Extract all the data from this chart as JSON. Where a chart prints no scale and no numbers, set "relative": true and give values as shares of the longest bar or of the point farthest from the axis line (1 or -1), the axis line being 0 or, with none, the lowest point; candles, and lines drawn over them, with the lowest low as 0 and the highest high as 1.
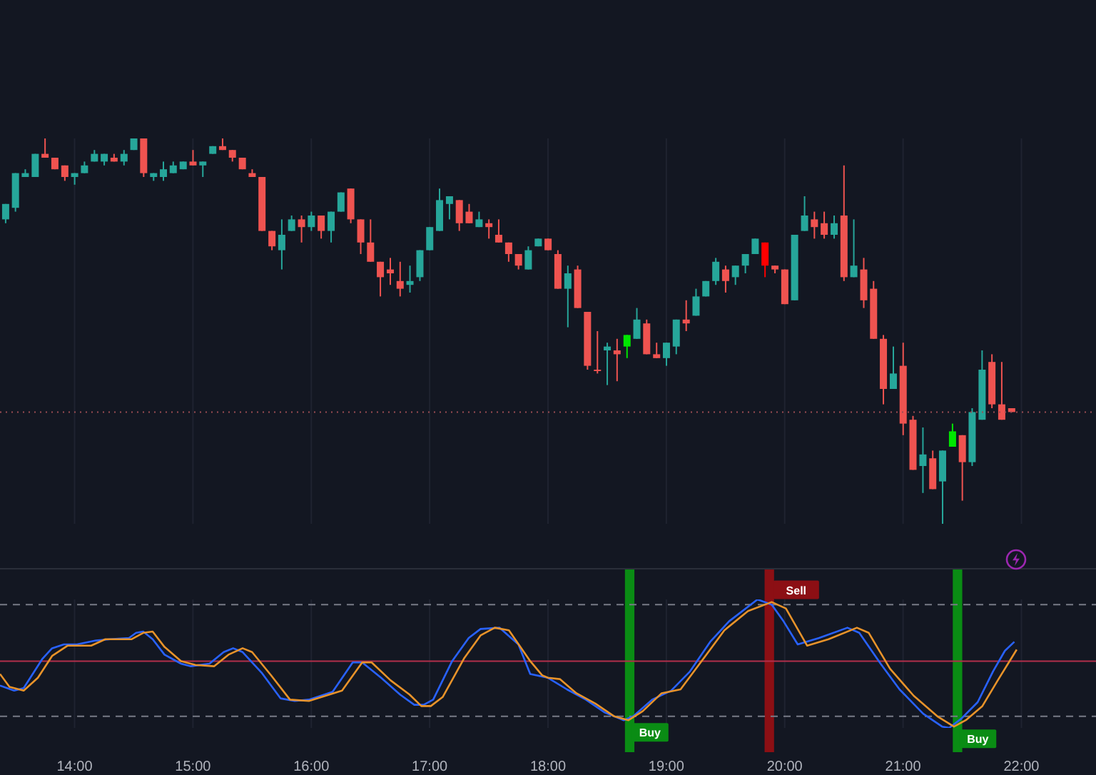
{
  "chart_data": [
    {
      "type": "candlestick",
      "relative": true,
      "grid": "x",
      "tick_labels": false,
      "xlim": [
        13.37,
        22.63
      ],
      "xticks": [
        {
          "value": 14,
          "label": null
        },
        {
          "value": 15,
          "label": null
        },
        {
          "value": 16,
          "label": null
        },
        {
          "value": 17,
          "label": null
        },
        {
          "value": 18,
          "label": null
        },
        {
          "value": 19,
          "label": null
        },
        {
          "value": 20,
          "label": null
        },
        {
          "value": 21,
          "label": null
        },
        {
          "value": 22,
          "label": null
        }
      ],
      "x": [
        13.417,
        13.5,
        13.583,
        13.667,
        13.75,
        13.833,
        13.917,
        14.0,
        14.083,
        14.167,
        14.25,
        14.333,
        14.417,
        14.5,
        14.583,
        14.667,
        14.75,
        14.833,
        14.917,
        15.0,
        15.083,
        15.167,
        15.25,
        15.333,
        15.417,
        15.5,
        15.583,
        15.667,
        15.75,
        15.833,
        15.917,
        16.0,
        16.083,
        16.167,
        16.25,
        16.333,
        16.417,
        16.5,
        16.583,
        16.667,
        16.75,
        16.833,
        16.917,
        17.0,
        17.083,
        17.167,
        17.25,
        17.333,
        17.417,
        17.5,
        17.583,
        17.667,
        17.75,
        17.833,
        17.917,
        18.0,
        18.083,
        18.167,
        18.25,
        18.333,
        18.417,
        18.5,
        18.583,
        18.667,
        18.75,
        18.833,
        18.917,
        19.0,
        19.083,
        19.167,
        19.25,
        19.333,
        19.417,
        19.5,
        19.583,
        19.667,
        19.75,
        19.833,
        19.917,
        20.0,
        20.083,
        20.167,
        20.25,
        20.333,
        20.417,
        20.5,
        20.583,
        20.667,
        20.75,
        20.833,
        20.917,
        21.0,
        21.083,
        21.167,
        21.25,
        21.333,
        21.417,
        21.5,
        21.583,
        21.667,
        21.75,
        21.833,
        21.917
      ],
      "ohlc": [
        [
          0.79,
          0.83,
          0.78,
          0.83
        ],
        [
          0.82,
          0.91,
          0.81,
          0.91
        ],
        [
          0.9,
          0.92,
          0.9,
          0.91
        ],
        [
          0.9,
          0.96,
          0.9,
          0.96
        ],
        [
          0.96,
          1.0,
          0.95,
          0.95
        ],
        [
          0.95,
          0.95,
          0.92,
          0.92
        ],
        [
          0.93,
          0.93,
          0.89,
          0.9
        ],
        [
          0.9,
          0.91,
          0.88,
          0.91
        ],
        [
          0.91,
          0.94,
          0.91,
          0.93
        ],
        [
          0.94,
          0.97,
          0.94,
          0.96
        ],
        [
          0.94,
          0.96,
          0.93,
          0.96
        ],
        [
          0.95,
          0.96,
          0.94,
          0.94
        ],
        [
          0.94,
          0.97,
          0.93,
          0.96
        ],
        [
          0.97,
          1.0,
          0.97,
          1.0
        ],
        [
          1.0,
          1.0,
          0.9,
          0.91
        ],
        [
          0.9,
          0.91,
          0.89,
          0.91
        ],
        [
          0.9,
          0.94,
          0.89,
          0.92
        ],
        [
          0.91,
          0.94,
          0.91,
          0.93
        ],
        [
          0.92,
          0.94,
          0.92,
          0.94
        ],
        [
          0.94,
          0.97,
          0.93,
          0.93
        ],
        [
          0.93,
          0.94,
          0.9,
          0.94
        ],
        [
          0.96,
          0.98,
          0.96,
          0.98
        ],
        [
          0.98,
          1.0,
          0.97,
          0.97
        ],
        [
          0.97,
          0.97,
          0.94,
          0.95
        ],
        [
          0.95,
          0.95,
          0.92,
          0.92
        ],
        [
          0.91,
          0.92,
          0.9,
          0.9
        ],
        [
          0.9,
          0.9,
          0.76,
          0.76
        ],
        [
          0.76,
          0.76,
          0.71,
          0.72
        ],
        [
          0.71,
          0.79,
          0.66,
          0.75
        ],
        [
          0.76,
          0.8,
          0.76,
          0.79
        ],
        [
          0.79,
          0.8,
          0.73,
          0.77
        ],
        [
          0.77,
          0.81,
          0.76,
          0.8
        ],
        [
          0.8,
          0.8,
          0.74,
          0.76
        ],
        [
          0.76,
          0.81,
          0.73,
          0.81
        ],
        [
          0.81,
          0.86,
          0.81,
          0.86
        ],
        [
          0.87,
          0.87,
          0.78,
          0.79
        ],
        [
          0.79,
          0.79,
          0.7,
          0.73
        ],
        [
          0.73,
          0.79,
          0.68,
          0.68
        ],
        [
          0.68,
          0.68,
          0.59,
          0.64
        ],
        [
          0.66,
          0.69,
          0.62,
          0.65
        ],
        [
          0.63,
          0.68,
          0.59,
          0.61
        ],
        [
          0.62,
          0.67,
          0.6,
          0.63
        ],
        [
          0.64,
          0.71,
          0.63,
          0.71
        ],
        [
          0.71,
          0.77,
          0.71,
          0.77
        ],
        [
          0.76,
          0.87,
          0.76,
          0.84
        ],
        [
          0.83,
          0.85,
          0.79,
          0.85
        ],
        [
          0.84,
          0.84,
          0.76,
          0.78
        ],
        [
          0.81,
          0.83,
          0.78,
          0.78
        ],
        [
          0.77,
          0.81,
          0.77,
          0.79
        ],
        [
          0.78,
          0.79,
          0.74,
          0.77
        ],
        [
          0.75,
          0.79,
          0.73,
          0.73
        ],
        [
          0.73,
          0.73,
          0.68,
          0.7
        ],
        [
          0.7,
          0.7,
          0.66,
          0.67
        ],
        [
          0.66,
          0.72,
          0.66,
          0.71
        ],
        [
          0.72,
          0.74,
          0.72,
          0.74
        ],
        [
          0.74,
          0.74,
          0.71,
          0.71
        ],
        [
          0.7,
          0.71,
          0.61,
          0.61
        ],
        [
          0.61,
          0.67,
          0.51,
          0.65
        ],
        [
          0.66,
          0.67,
          0.56,
          0.56
        ],
        [
          0.55,
          0.55,
          0.4,
          0.41
        ],
        [
          0.4,
          0.5,
          0.39,
          0.4
        ],
        [
          0.45,
          0.47,
          0.36,
          0.46
        ],
        [
          0.45,
          0.48,
          0.37,
          0.44
        ],
        [
          0.46,
          0.49,
          0.43,
          0.49
        ],
        [
          0.48,
          0.56,
          0.48,
          0.53
        ],
        [
          0.52,
          0.53,
          0.44,
          0.44
        ],
        [
          0.44,
          0.47,
          0.43,
          0.43
        ],
        [
          0.43,
          0.47,
          0.41,
          0.47
        ],
        [
          0.46,
          0.53,
          0.44,
          0.53
        ],
        [
          0.53,
          0.58,
          0.5,
          0.52
        ],
        [
          0.54,
          0.61,
          0.54,
          0.59
        ],
        [
          0.59,
          0.63,
          0.59,
          0.63
        ],
        [
          0.63,
          0.69,
          0.62,
          0.68
        ],
        [
          0.66,
          0.67,
          0.6,
          0.63
        ],
        [
          0.64,
          0.67,
          0.62,
          0.67
        ],
        [
          0.67,
          0.7,
          0.65,
          0.7
        ],
        [
          0.7,
          0.74,
          0.7,
          0.74
        ],
        [
          0.73,
          0.73,
          0.64,
          0.67
        ],
        [
          0.67,
          0.67,
          0.65,
          0.66
        ],
        [
          0.66,
          0.66,
          0.57,
          0.57
        ],
        [
          0.58,
          0.75,
          0.58,
          0.75
        ],
        [
          0.76,
          0.85,
          0.76,
          0.8
        ],
        [
          0.79,
          0.81,
          0.74,
          0.77
        ],
        [
          0.78,
          0.81,
          0.74,
          0.75
        ],
        [
          0.75,
          0.8,
          0.74,
          0.78
        ],
        [
          0.8,
          0.93,
          0.63,
          0.64
        ],
        [
          0.64,
          0.79,
          0.64,
          0.67
        ],
        [
          0.66,
          0.69,
          0.56,
          0.58
        ],
        [
          0.61,
          0.63,
          0.48,
          0.48
        ],
        [
          0.48,
          0.49,
          0.31,
          0.35
        ],
        [
          0.35,
          0.46,
          0.35,
          0.39
        ],
        [
          0.41,
          0.47,
          0.23,
          0.26
        ],
        [
          0.27,
          0.28,
          0.14,
          0.14
        ],
        [
          0.15,
          0.25,
          0.08,
          0.18
        ],
        [
          0.17,
          0.19,
          0.09,
          0.09
        ],
        [
          0.11,
          0.19,
          0.0,
          0.19
        ],
        [
          0.2,
          0.26,
          0.2,
          0.24
        ],
        [
          0.23,
          0.23,
          0.06,
          0.16
        ],
        [
          0.16,
          0.3,
          0.15,
          0.29
        ],
        [
          0.27,
          0.45,
          0.27,
          0.4
        ],
        [
          0.42,
          0.44,
          0.3,
          0.31
        ],
        [
          0.31,
          0.42,
          0.27,
          0.27
        ],
        [
          0.3,
          0.3,
          0.29,
          0.29
        ]
      ],
      "colors": [
        "#26a69a",
        "#26a69a",
        "#26a69a",
        "#26a69a",
        "#ef5350",
        "#ef5350",
        "#ef5350",
        "#26a69a",
        "#26a69a",
        "#26a69a",
        "#26a69a",
        "#ef5350",
        "#26a69a",
        "#26a69a",
        "#ef5350",
        "#26a69a",
        "#26a69a",
        "#26a69a",
        "#26a69a",
        "#ef5350",
        "#26a69a",
        "#26a69a",
        "#ef5350",
        "#ef5350",
        "#ef5350",
        "#ef5350",
        "#ef5350",
        "#ef5350",
        "#26a69a",
        "#26a69a",
        "#ef5350",
        "#26a69a",
        "#ef5350",
        "#26a69a",
        "#26a69a",
        "#ef5350",
        "#ef5350",
        "#ef5350",
        "#ef5350",
        "#ef5350",
        "#ef5350",
        "#26a69a",
        "#26a69a",
        "#26a69a",
        "#26a69a",
        "#26a69a",
        "#ef5350",
        "#ef5350",
        "#26a69a",
        "#ef5350",
        "#ef5350",
        "#ef5350",
        "#ef5350",
        "#26a69a",
        "#26a69a",
        "#ef5350",
        "#ef5350",
        "#26a69a",
        "#ef5350",
        "#ef5350",
        "#ef5350",
        "#26a69a",
        "#ef5350",
        "#00e600",
        "#26a69a",
        "#ef5350",
        "#ef5350",
        "#26a69a",
        "#26a69a",
        "#ef5350",
        "#26a69a",
        "#26a69a",
        "#26a69a",
        "#ef5350",
        "#26a69a",
        "#26a69a",
        "#26a69a",
        "#ff0000",
        "#ef5350",
        "#ef5350",
        "#26a69a",
        "#26a69a",
        "#ef5350",
        "#ef5350",
        "#26a69a",
        "#ef5350",
        "#26a69a",
        "#ef5350",
        "#ef5350",
        "#ef5350",
        "#26a69a",
        "#ef5350",
        "#ef5350",
        "#26a69a",
        "#ef5350",
        "#26a69a",
        "#00e600",
        "#ef5350",
        "#26a69a",
        "#26a69a",
        "#ef5350",
        "#ef5350",
        "#ef5350"
      ],
      "ref_lines": [
        {
          "axis": "y",
          "value": 0.29,
          "color": "#9b4d52",
          "line_style": "dotted"
        }
      ]
    },
    {
      "type": "line",
      "relative": true,
      "grid": "x",
      "tick_labels": "x",
      "line_style": "solid",
      "xlim": [
        13.37,
        22.63
      ],
      "xticks": [
        {
          "value": 14,
          "label": "14:00"
        },
        {
          "value": 15,
          "label": "15:00"
        },
        {
          "value": 16,
          "label": "16:00"
        },
        {
          "value": 17,
          "label": "17:00"
        },
        {
          "value": 18,
          "label": "18:00"
        },
        {
          "value": 19,
          "label": "19:00"
        },
        {
          "value": 20,
          "label": "20:00"
        },
        {
          "value": 21,
          "label": "21:00"
        },
        {
          "value": 22,
          "label": "22:00"
        }
      ],
      "series": [
        {
          "color": "#2962ff",
          "x": [
            13.37,
            13.49,
            13.57,
            13.73,
            13.81,
            13.91,
            14.02,
            14.18,
            14.3,
            14.46,
            14.52,
            14.58,
            14.66,
            14.76,
            14.9,
            14.98,
            15.14,
            15.26,
            15.34,
            15.42,
            15.58,
            15.74,
            15.86,
            15.98,
            16.18,
            16.35,
            16.43,
            16.59,
            16.75,
            16.87,
            16.95,
            17.03,
            17.19,
            17.33,
            17.43,
            17.59,
            17.75,
            17.85,
            18.0,
            18.16,
            18.32,
            18.48,
            18.64,
            18.72,
            18.88,
            19.04,
            19.2,
            19.37,
            19.53,
            19.77,
            19.89,
            19.99,
            20.11,
            20.29,
            20.53,
            20.63,
            20.81,
            20.97,
            21.17,
            21.33,
            21.39,
            21.49,
            21.63,
            21.76,
            21.86,
            21.94
          ],
          "values": [
            0.33,
            0.29,
            0.31,
            0.54,
            0.62,
            0.65,
            0.65,
            0.68,
            0.69,
            0.7,
            0.74,
            0.75,
            0.69,
            0.57,
            0.5,
            0.48,
            0.5,
            0.59,
            0.62,
            0.59,
            0.43,
            0.23,
            0.21,
            0.22,
            0.28,
            0.51,
            0.51,
            0.39,
            0.26,
            0.18,
            0.18,
            0.22,
            0.52,
            0.7,
            0.77,
            0.78,
            0.65,
            0.42,
            0.39,
            0.3,
            0.22,
            0.12,
            0.06,
            0.09,
            0.22,
            0.29,
            0.44,
            0.67,
            0.83,
            1.0,
            0.96,
            0.83,
            0.65,
            0.7,
            0.78,
            0.74,
            0.5,
            0.3,
            0.11,
            0.01,
            0.0,
            0.07,
            0.2,
            0.44,
            0.6,
            0.67
          ]
        },
        {
          "color": "#e8932a",
          "x": [
            13.37,
            13.45,
            13.57,
            13.69,
            13.81,
            13.94,
            14.14,
            14.26,
            14.48,
            14.58,
            14.66,
            14.76,
            14.9,
            15.02,
            15.18,
            15.3,
            15.42,
            15.5,
            15.66,
            15.82,
            15.98,
            16.26,
            16.43,
            16.51,
            16.67,
            16.83,
            16.93,
            17.01,
            17.11,
            17.29,
            17.43,
            17.55,
            17.67,
            17.85,
            17.95,
            18.0,
            18.1,
            18.24,
            18.4,
            18.56,
            18.68,
            18.8,
            18.96,
            19.12,
            19.33,
            19.49,
            19.69,
            19.89,
            20.01,
            20.19,
            20.37,
            20.61,
            20.71,
            20.89,
            21.09,
            21.29,
            21.43,
            21.53,
            21.67,
            21.8,
            21.96
          ],
          "values": [
            0.42,
            0.32,
            0.29,
            0.39,
            0.56,
            0.64,
            0.64,
            0.69,
            0.69,
            0.74,
            0.75,
            0.63,
            0.52,
            0.49,
            0.48,
            0.57,
            0.62,
            0.59,
            0.41,
            0.22,
            0.21,
            0.29,
            0.51,
            0.51,
            0.37,
            0.26,
            0.17,
            0.17,
            0.24,
            0.54,
            0.72,
            0.78,
            0.76,
            0.52,
            0.41,
            0.39,
            0.38,
            0.27,
            0.19,
            0.09,
            0.06,
            0.13,
            0.27,
            0.3,
            0.56,
            0.76,
            0.91,
            0.98,
            0.93,
            0.64,
            0.69,
            0.78,
            0.74,
            0.46,
            0.25,
            0.09,
            0.01,
            0.06,
            0.17,
            0.37,
            0.61
          ]
        }
      ],
      "ref_lines": [
        {
          "axis": "y",
          "value": 0.96,
          "color": "#787b86",
          "line_style": "dashed"
        },
        {
          "axis": "y",
          "value": 0.09,
          "color": "#787b86",
          "line_style": "dashed"
        },
        {
          "axis": "y",
          "value": 0.52,
          "color": "#b22f4a",
          "line_style": "solid"
        }
      ],
      "bands": [
        {
          "axis": "x",
          "from": 18.65,
          "to": 18.73,
          "color": "#0a8c14"
        },
        {
          "axis": "x",
          "from": 19.83,
          "to": 19.91,
          "color": "#8c0f14"
        },
        {
          "axis": "x",
          "from": 21.42,
          "to": 21.5,
          "color": "#0a8c14"
        }
      ],
      "annotations": [
        {
          "text": "Buy",
          "x": 18.68,
          "y": 0.06
        },
        {
          "text": "Sell",
          "x": 19.88,
          "y": 0.98
        },
        {
          "text": "Buy",
          "x": 21.45,
          "y": 0.01
        }
      ]
    }
  ]
}
